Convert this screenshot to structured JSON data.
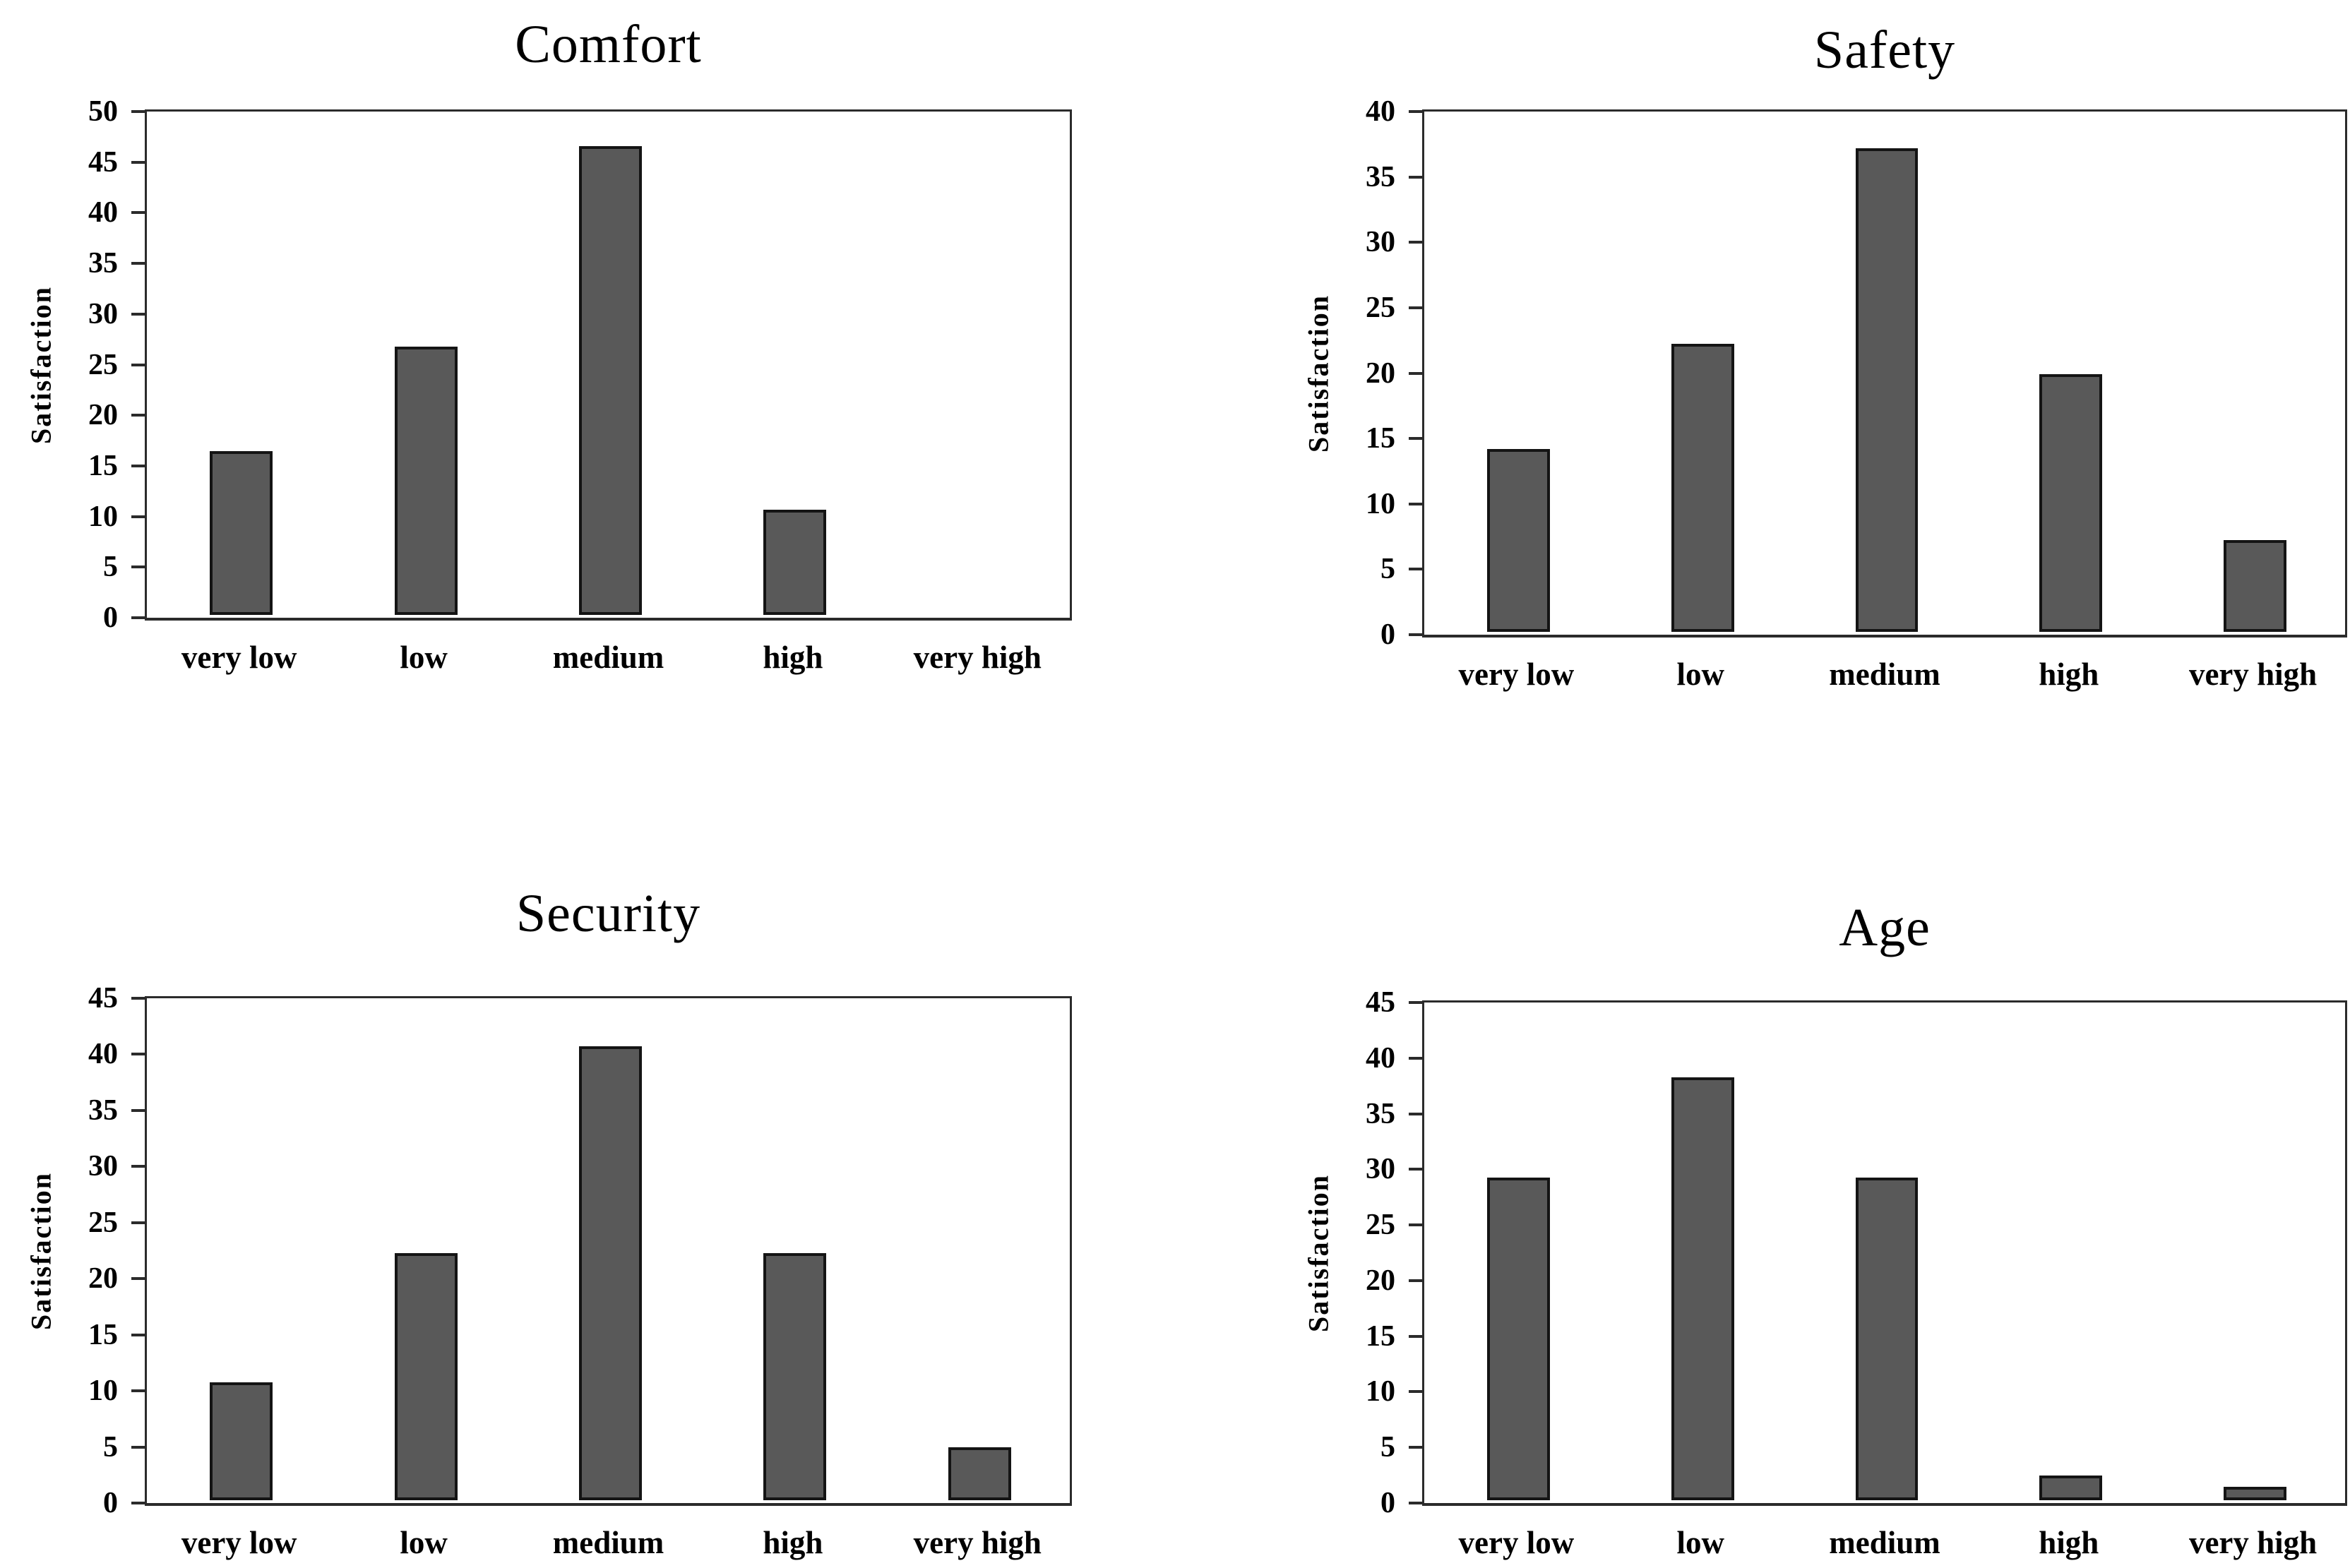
{
  "page": {
    "background": "#ffffff",
    "text_color": "#000000"
  },
  "styles": {
    "bar_fill": "#595959",
    "bar_border": "#141414",
    "axis_color": "#2b2b2b",
    "plot_background": "#ffffff"
  },
  "chart_data": [
    {
      "type": "bar",
      "title": "Comfort",
      "ylabel": "Satisfaction",
      "xlabel": "",
      "categories": [
        "very low",
        "low",
        "medium",
        "high",
        "very high"
      ],
      "values": [
        16.2,
        26.5,
        46.3,
        10.4,
        0
      ],
      "ylim": [
        0,
        50
      ],
      "ytick_step": 5,
      "yticks": [
        0,
        5,
        10,
        15,
        20,
        25,
        30,
        35,
        40,
        45,
        50
      ],
      "grid": "off",
      "legend": "none"
    },
    {
      "type": "bar",
      "title": "Safety",
      "ylabel": "Satisfaction",
      "xlabel": "",
      "categories": [
        "very low",
        "low",
        "medium",
        "high",
        "very high"
      ],
      "values": [
        14,
        22,
        37,
        19.7,
        7
      ],
      "ylim": [
        0,
        40
      ],
      "ytick_step": 5,
      "yticks": [
        0,
        5,
        10,
        15,
        20,
        25,
        30,
        35,
        40
      ],
      "grid": "off",
      "legend": "none"
    },
    {
      "type": "bar",
      "title": "Security",
      "ylabel": "Satisfaction",
      "xlabel": "",
      "categories": [
        "very low",
        "low",
        "medium",
        "high",
        "very high"
      ],
      "values": [
        10.5,
        22,
        40.5,
        22,
        4.7
      ],
      "ylim": [
        0,
        45
      ],
      "ytick_step": 5,
      "yticks": [
        0,
        5,
        10,
        15,
        20,
        25,
        30,
        35,
        40,
        45
      ],
      "grid": "off",
      "legend": "none"
    },
    {
      "type": "bar",
      "title": "Age",
      "ylabel": "Satisfaction",
      "xlabel": "",
      "categories": [
        "very low",
        "low",
        "medium",
        "high",
        "very high"
      ],
      "values": [
        29,
        38,
        29,
        2.2,
        1.2
      ],
      "ylim": [
        0,
        45
      ],
      "ytick_step": 5,
      "yticks": [
        0,
        5,
        10,
        15,
        20,
        25,
        30,
        35,
        40,
        45
      ],
      "grid": "off",
      "legend": "none"
    }
  ]
}
